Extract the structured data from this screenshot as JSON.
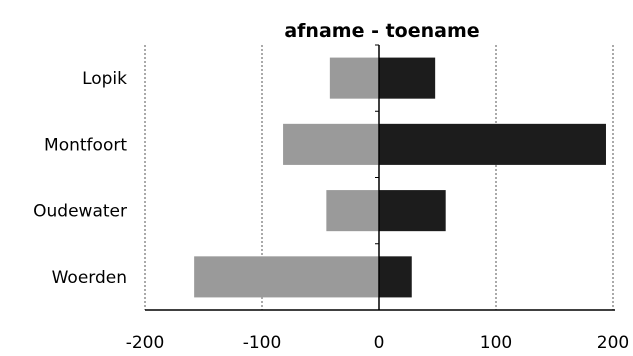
{
  "chart_data": {
    "type": "bar",
    "orientation": "horizontal",
    "stacked": true,
    "title": "afname - toename",
    "xlabel": "",
    "ylabel": "",
    "categories": [
      "Lopik",
      "Montfoort",
      "Oudewater",
      "Woerden"
    ],
    "series": [
      {
        "values": [
          -42,
          -82,
          -45,
          -158
        ],
        "color": "#9a9a9a"
      },
      {
        "values": [
          48,
          194,
          57,
          28
        ],
        "color": "#1c1c1c"
      }
    ],
    "xlim": [
      -200,
      200
    ],
    "xticks": [
      -200,
      -100,
      0,
      100,
      200
    ],
    "xtick_labels": [
      "-200",
      "-100",
      "0",
      "100",
      "200"
    ],
    "grid": "vertical dashed",
    "legend": "none"
  }
}
